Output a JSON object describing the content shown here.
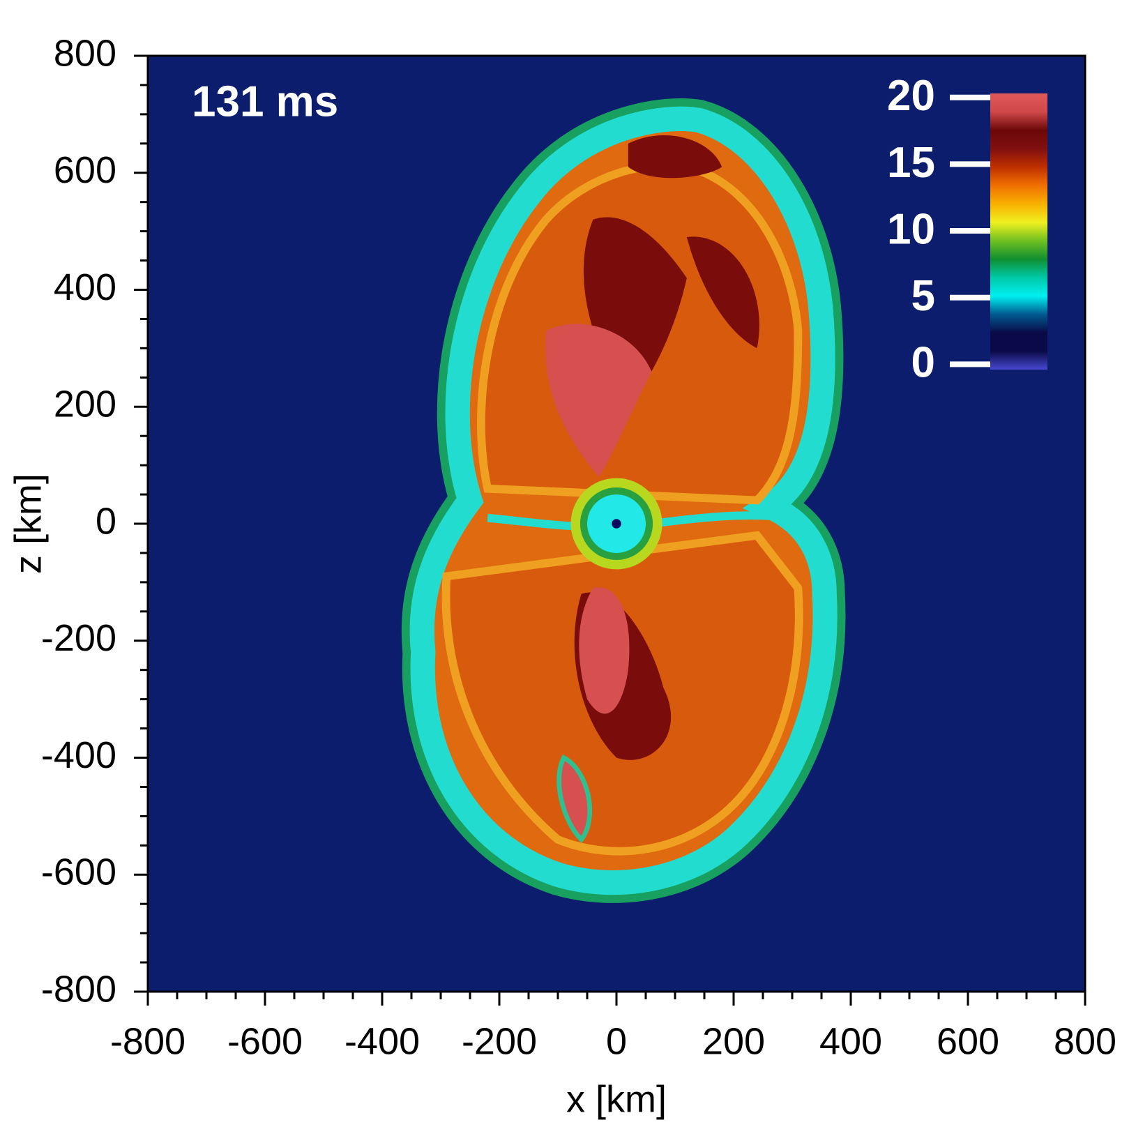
{
  "chart_data": {
    "type": "heatmap",
    "annotation": "131 ms",
    "xlabel": "x [km]",
    "ylabel": "z [km]",
    "xlim": [
      -800,
      800
    ],
    "ylim": [
      -800,
      800
    ],
    "xticks": [
      -800,
      -600,
      -400,
      -200,
      0,
      200,
      400,
      600,
      800
    ],
    "yticks": [
      -800,
      -600,
      -400,
      -200,
      0,
      200,
      400,
      600,
      800
    ],
    "background": "#0b1d6c",
    "colorbar": {
      "lim": [
        -0.4,
        20.3
      ],
      "ticks": [
        0,
        5,
        10,
        15,
        20
      ],
      "colors": [
        "#4848d0",
        "#0a0a48",
        "#0a0a48",
        "#005a90",
        "#00f0f0",
        "#00c8a8",
        "#109030",
        "#70c020",
        "#f0f020",
        "#f8b000",
        "#f07000",
        "#c03000",
        "#801010",
        "#6c0808",
        "#d04848",
        "#e05a5a"
      ]
    }
  }
}
